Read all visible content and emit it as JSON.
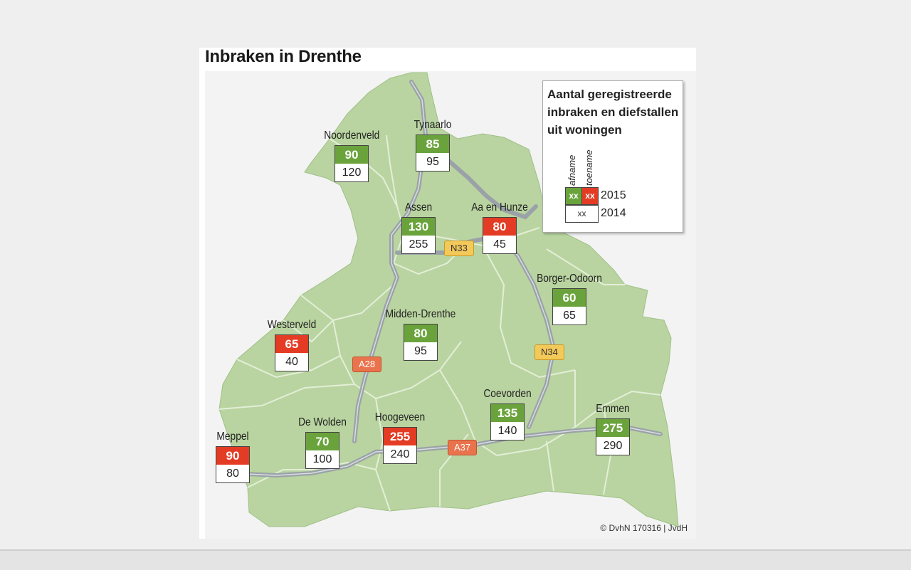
{
  "title": "Inbraken in Drenthe",
  "legend": {
    "title_lines": [
      "Aantal geregistreerde",
      "inbraken en diefstallen",
      "uit woningen"
    ],
    "decrease_label": "afname",
    "increase_label": "toename",
    "placeholder": "xx",
    "year_current": "2015",
    "year_previous": "2014"
  },
  "colors": {
    "decrease": "#6aa33c",
    "increase": "#e43c24",
    "land": "#b9d4a0",
    "road": "#9aa2a8"
  },
  "municipalities": [
    {
      "name": "Noordenveld",
      "v2015": "90",
      "v2014": "120",
      "trend": "decrease"
    },
    {
      "name": "Tynaarlo",
      "v2015": "85",
      "v2014": "95",
      "trend": "decrease"
    },
    {
      "name": "Assen",
      "v2015": "130",
      "v2014": "255",
      "trend": "decrease"
    },
    {
      "name": "Aa en Hunze",
      "v2015": "80",
      "v2014": "45",
      "trend": "increase"
    },
    {
      "name": "Borger-Odoorn",
      "v2015": "60",
      "v2014": "65",
      "trend": "decrease"
    },
    {
      "name": "Westerveld",
      "v2015": "65",
      "v2014": "40",
      "trend": "increase"
    },
    {
      "name": "Midden-Drenthe",
      "v2015": "80",
      "v2014": "95",
      "trend": "decrease"
    },
    {
      "name": "Meppel",
      "v2015": "90",
      "v2014": "80",
      "trend": "increase"
    },
    {
      "name": "De Wolden",
      "v2015": "70",
      "v2014": "100",
      "trend": "decrease"
    },
    {
      "name": "Hoogeveen",
      "v2015": "255",
      "v2014": "240",
      "trend": "increase"
    },
    {
      "name": "Coevorden",
      "v2015": "135",
      "v2014": "140",
      "trend": "decrease"
    },
    {
      "name": "Emmen",
      "v2015": "275",
      "v2014": "290",
      "trend": "decrease"
    }
  ],
  "roads": [
    {
      "label": "N33",
      "kind": "provincial"
    },
    {
      "label": "N34",
      "kind": "provincial"
    },
    {
      "label": "A28",
      "kind": "motorway"
    },
    {
      "label": "A37",
      "kind": "motorway"
    }
  ],
  "copyright": "© DvhN 170316 | JvdH"
}
